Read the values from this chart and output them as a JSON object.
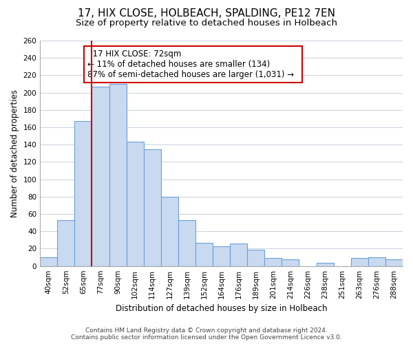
{
  "title": "17, HIX CLOSE, HOLBEACH, SPALDING, PE12 7EN",
  "subtitle": "Size of property relative to detached houses in Holbeach",
  "xlabel": "Distribution of detached houses by size in Holbeach",
  "ylabel": "Number of detached properties",
  "bar_labels": [
    "40sqm",
    "52sqm",
    "65sqm",
    "77sqm",
    "90sqm",
    "102sqm",
    "114sqm",
    "127sqm",
    "139sqm",
    "152sqm",
    "164sqm",
    "176sqm",
    "189sqm",
    "201sqm",
    "214sqm",
    "226sqm",
    "238sqm",
    "251sqm",
    "263sqm",
    "276sqm",
    "288sqm"
  ],
  "bar_values": [
    10,
    53,
    167,
    207,
    210,
    143,
    135,
    80,
    53,
    27,
    23,
    26,
    19,
    9,
    8,
    0,
    4,
    0,
    9,
    10,
    8
  ],
  "bar_color": "#c9d9f0",
  "bar_edge_color": "#6a9fd8",
  "highlight_line_color": "#cc0000",
  "red_line_index": 2.5,
  "ylim": [
    0,
    260
  ],
  "yticks": [
    0,
    20,
    40,
    60,
    80,
    100,
    120,
    140,
    160,
    180,
    200,
    220,
    240,
    260
  ],
  "grid_color": "#c8d0dc",
  "background_color": "#ffffff",
  "annotation_title": "17 HIX CLOSE: 72sqm",
  "annotation_line1": "← 11% of detached houses are smaller (134)",
  "annotation_line2": "87% of semi-detached houses are larger (1,031) →",
  "annotation_box_color": "#ffffff",
  "annotation_box_edge": "#cc0000",
  "footer_line1": "Contains HM Land Registry data © Crown copyright and database right 2024.",
  "footer_line2": "Contains public sector information licensed under the Open Government Licence v3.0.",
  "title_fontsize": 11,
  "subtitle_fontsize": 9.5,
  "axis_label_fontsize": 8.5,
  "tick_fontsize": 7.5,
  "annotation_fontsize": 8.5,
  "footer_fontsize": 6.5
}
